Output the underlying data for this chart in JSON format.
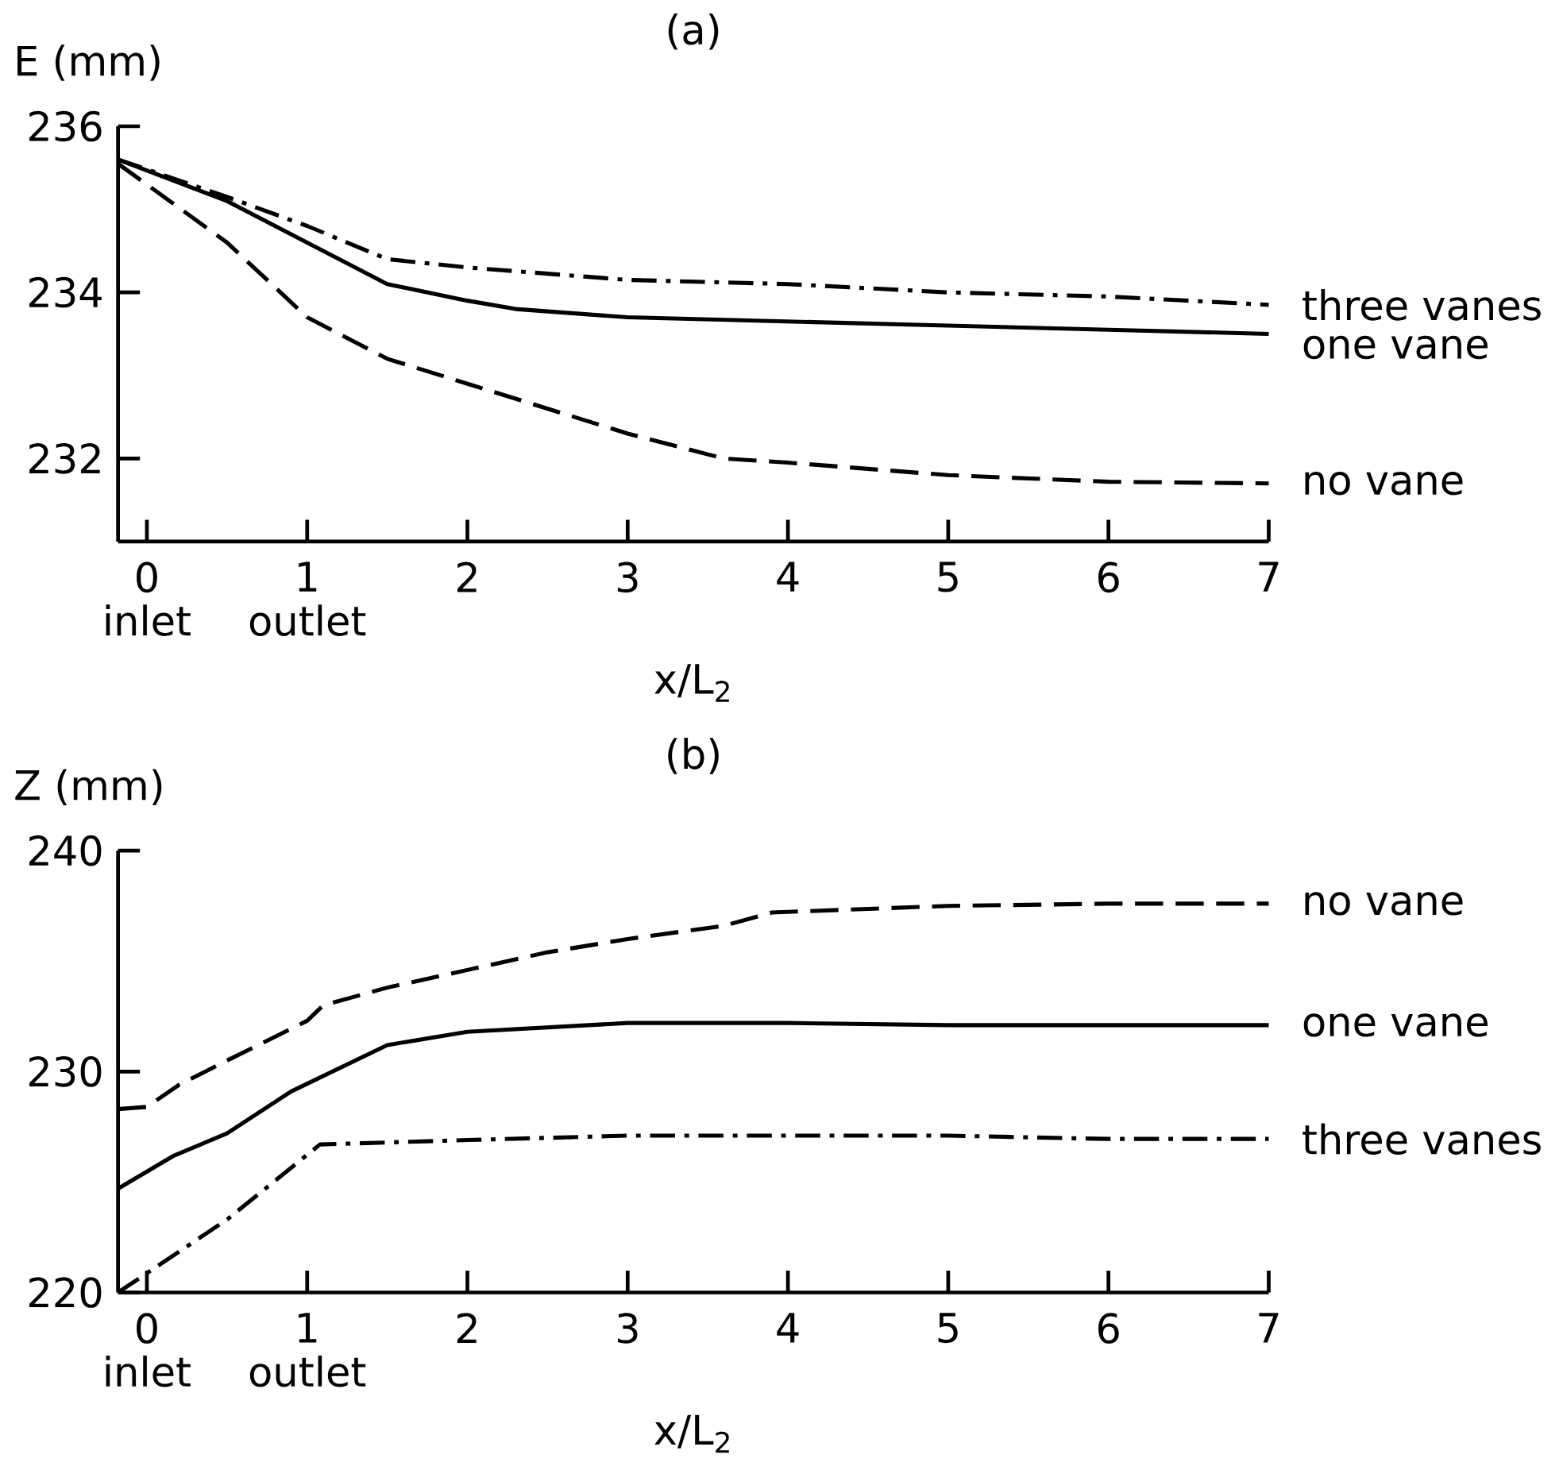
{
  "chart_data": [
    {
      "type": "line",
      "title": "(a)",
      "xlabel": "x/L$_{2}$",
      "ylabel": "E (mm)",
      "xlim": [
        -0.18,
        7
      ],
      "ylim": [
        231,
        236
      ],
      "xticks": [
        0,
        1,
        2,
        3,
        4,
        5,
        6,
        7
      ],
      "yticks": [
        232,
        234,
        236
      ],
      "grid": false,
      "legend": false,
      "marker": "none",
      "annotations": [
        "inlet",
        "outlet"
      ],
      "series": [
        {
          "name": "three vanes",
          "color": "#000000",
          "line_style": "dashdot",
          "x": [
            -0.18,
            0.5,
            1,
            1.5,
            2,
            3,
            4,
            5,
            6,
            7
          ],
          "values": [
            235.6,
            235.15,
            234.8,
            234.4,
            234.3,
            234.15,
            234.1,
            234.0,
            233.95,
            233.85
          ]
        },
        {
          "name": "one vane",
          "color": "#000000",
          "line_style": "solid",
          "x": [
            -0.18,
            0.5,
            1,
            1.5,
            2,
            2.3,
            3,
            4,
            5,
            6,
            7
          ],
          "values": [
            235.6,
            235.1,
            234.6,
            234.1,
            233.9,
            233.8,
            233.7,
            233.65,
            233.6,
            233.55,
            233.5
          ]
        },
        {
          "name": "no vane",
          "color": "#000000",
          "line_style": "dashed",
          "x": [
            -0.18,
            0.5,
            1,
            1.5,
            2,
            3,
            3.6,
            4,
            5,
            6,
            7
          ],
          "values": [
            235.55,
            234.6,
            233.7,
            233.2,
            232.9,
            232.3,
            232.0,
            231.95,
            231.8,
            231.72,
            231.7
          ]
        }
      ]
    },
    {
      "type": "line",
      "title": "(b)",
      "xlabel": "x/L$_{2}$",
      "ylabel": "Z (mm)",
      "xlim": [
        -0.18,
        7
      ],
      "ylim": [
        220,
        240
      ],
      "xticks": [
        0,
        1,
        2,
        3,
        4,
        5,
        6,
        7
      ],
      "yticks": [
        220,
        230,
        240
      ],
      "grid": false,
      "legend": false,
      "marker": "none",
      "annotations": [
        "inlet",
        "outlet"
      ],
      "series": [
        {
          "name": "no vane",
          "color": "#000000",
          "line_style": "dashed",
          "x": [
            -0.18,
            0,
            0.2,
            0.5,
            1,
            1.1,
            1.5,
            2,
            2.5,
            3,
            3.6,
            3.9,
            5,
            6,
            7
          ],
          "values": [
            228.3,
            228.4,
            229.4,
            230.5,
            232.3,
            233,
            233.8,
            234.6,
            235.4,
            236,
            236.6,
            237.2,
            237.5,
            237.6,
            237.6
          ]
        },
        {
          "name": "one vane",
          "color": "#000000",
          "line_style": "solid",
          "x": [
            -0.18,
            0.17,
            0.5,
            0.9,
            1.5,
            2,
            3,
            4,
            5,
            6,
            7
          ],
          "values": [
            224.7,
            226.2,
            227.2,
            229.1,
            231.2,
            231.8,
            232.2,
            232.2,
            232.1,
            232.1,
            232.1
          ]
        },
        {
          "name": "three vanes",
          "color": "#000000",
          "line_style": "dashdot",
          "x": [
            -0.18,
            0.5,
            1.08,
            2,
            3,
            4,
            5,
            6,
            7
          ],
          "values": [
            220,
            223.3,
            226.7,
            226.9,
            227.1,
            227.1,
            227.1,
            226.95,
            226.95
          ]
        }
      ]
    }
  ]
}
